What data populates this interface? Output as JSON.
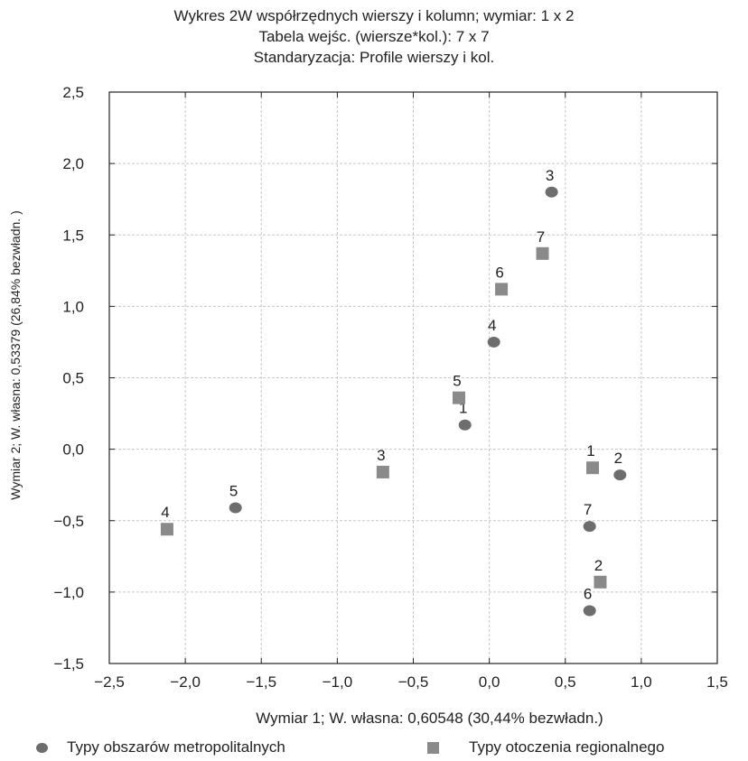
{
  "titles": {
    "line1": "Wykres 2W współrzędnych wierszy i kolumn; wymiar:  1 x  2",
    "line2": "Tabela wejśc. (wiersze*kol.): 7 x 7",
    "line3": "Standaryzacja:   Profile wierszy i kol."
  },
  "legend": {
    "series1": "Typy obszarów metropolitalnych",
    "series2": "Typy otoczenia regionalnego"
  },
  "chart_data": {
    "type": "scatter",
    "title": "Wykres 2W współrzędnych wierszy i kolumn; wymiar:  1 x  2",
    "xlabel": "Wymiar    1; W. własna:  0,60548 (30,44% bezwładn.)",
    "ylabel": "Wymiar    2; W. własna:  0,53379 (26,84% bezwładn. )",
    "xlim": [
      -2.5,
      1.5
    ],
    "ylim": [
      -1.5,
      2.5
    ],
    "x_ticks": [
      "−2,5",
      "−2,0",
      "−1,5",
      "−1,0",
      "−0,5",
      "0,0",
      "0,5",
      "1,0",
      "1,5"
    ],
    "y_ticks": [
      "2,5",
      "2,0",
      "1,5",
      "1,0",
      "0,5",
      "0,0",
      "−0,5",
      "−1,0",
      "−1,5"
    ],
    "grid": true,
    "legend_position": "bottom",
    "series": [
      {
        "name": "Typy obszarów metropolitalnych",
        "marker": "circle",
        "color": "#6d6d6d",
        "points": [
          {
            "label": "1",
            "x": -0.16,
            "y": 0.17
          },
          {
            "label": "2",
            "x": 0.86,
            "y": -0.18
          },
          {
            "label": "3",
            "x": 0.41,
            "y": 1.8
          },
          {
            "label": "4",
            "x": 0.03,
            "y": 0.75
          },
          {
            "label": "5",
            "x": -1.67,
            "y": -0.41
          },
          {
            "label": "6",
            "x": 0.66,
            "y": -1.13
          },
          {
            "label": "7",
            "x": 0.66,
            "y": -0.54
          }
        ]
      },
      {
        "name": "Typy otoczenia regionalnego",
        "marker": "square",
        "color": "#8a8a8a",
        "points": [
          {
            "label": "1",
            "x": 0.68,
            "y": -0.13
          },
          {
            "label": "2",
            "x": 0.73,
            "y": -0.93
          },
          {
            "label": "3",
            "x": -0.7,
            "y": -0.16
          },
          {
            "label": "4",
            "x": -2.12,
            "y": -0.56
          },
          {
            "label": "5",
            "x": -0.2,
            "y": 0.36
          },
          {
            "label": "6",
            "x": 0.08,
            "y": 1.12
          },
          {
            "label": "7",
            "x": 0.35,
            "y": 1.37
          }
        ]
      }
    ]
  }
}
